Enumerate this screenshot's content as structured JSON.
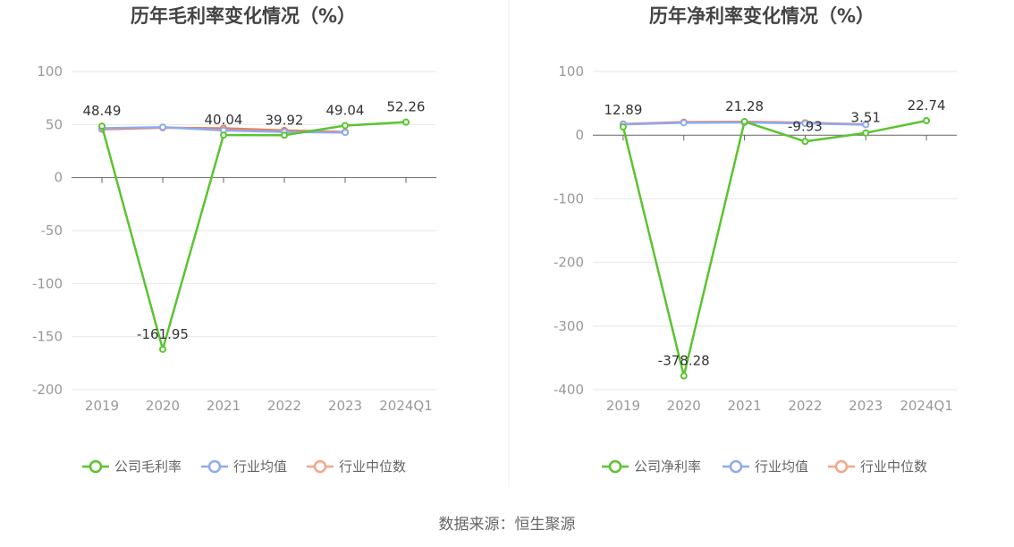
{
  "source": "数据来源：恒生聚源",
  "colors": {
    "company": "#5ac42f",
    "avg": "#8eaaf0",
    "median": "#f5a58a",
    "median_line": "#e8825e",
    "axis": "#666666",
    "grid": "#e6e6ee"
  },
  "chart_data": [
    {
      "type": "line",
      "title": "历年毛利率变化情况（%）",
      "categories": [
        "2019",
        "2020",
        "2021",
        "2022",
        "2023",
        "2024Q1"
      ],
      "ylim": [
        -200,
        100
      ],
      "yticks": [
        100,
        50,
        0,
        -50,
        -100,
        -150,
        -200
      ],
      "ytick_labels": [
        "100",
        "50",
        "0",
        "-50",
        "-100",
        "-150",
        "-200"
      ],
      "legend_position": "bottom",
      "grid": true,
      "series": [
        {
          "name": "公司毛利率",
          "key": "company",
          "values": [
            48.49,
            -161.95,
            40.04,
            39.92,
            49.04,
            52.26
          ],
          "labels": [
            "48.49",
            "-161.95",
            "40.04",
            "39.92",
            "49.04",
            "52.26"
          ]
        },
        {
          "name": "行业均值",
          "key": "avg",
          "values": [
            46.5,
            47.5,
            44.5,
            43.0,
            42.5,
            null
          ]
        },
        {
          "name": "行业中位数",
          "key": "median",
          "values": [
            45.5,
            47.0,
            46.5,
            44.5,
            43.0,
            null
          ]
        }
      ]
    },
    {
      "type": "line",
      "title": "历年净利率变化情况（%）",
      "categories": [
        "2019",
        "2020",
        "2021",
        "2022",
        "2023",
        "2024Q1"
      ],
      "ylim": [
        -400,
        100
      ],
      "yticks": [
        100,
        0,
        -100,
        -200,
        -300,
        -400
      ],
      "ytick_labels": [
        "100",
        "0",
        "-100",
        "-200",
        "-300",
        "-400"
      ],
      "legend_position": "bottom",
      "grid": true,
      "series": [
        {
          "name": "公司净利率",
          "key": "company",
          "values": [
            12.89,
            -378.28,
            21.28,
            -9.93,
            3.51,
            22.74
          ],
          "labels": [
            "12.89",
            "-378.28",
            "21.28",
            "-9.93",
            "3.51",
            "22.74"
          ]
        },
        {
          "name": "行业均值",
          "key": "avg",
          "values": [
            17.0,
            19.5,
            20.0,
            18.5,
            16.5,
            null
          ]
        },
        {
          "name": "行业中位数",
          "key": "median",
          "values": [
            17.5,
            20.5,
            21.0,
            19.5,
            17.0,
            null
          ]
        }
      ]
    }
  ]
}
